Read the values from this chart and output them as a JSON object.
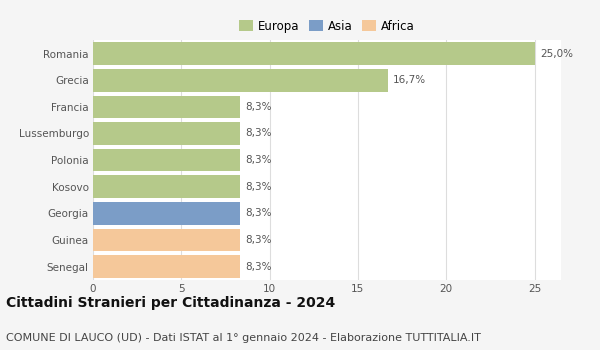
{
  "categories": [
    "Senegal",
    "Guinea",
    "Georgia",
    "Kosovo",
    "Polonia",
    "Lussemburgo",
    "Francia",
    "Grecia",
    "Romania"
  ],
  "values": [
    8.3,
    8.3,
    8.3,
    8.3,
    8.3,
    8.3,
    8.3,
    16.7,
    25.0
  ],
  "bar_colors": [
    "#f5c89a",
    "#f5c89a",
    "#7b9dc7",
    "#b5c98a",
    "#b5c98a",
    "#b5c98a",
    "#b5c98a",
    "#b5c98a",
    "#b5c98a"
  ],
  "labels": [
    "8,3%",
    "8,3%",
    "8,3%",
    "8,3%",
    "8,3%",
    "8,3%",
    "8,3%",
    "16,7%",
    "25,0%"
  ],
  "xlim": [
    0,
    25
  ],
  "xticks": [
    0,
    5,
    10,
    15,
    20,
    25
  ],
  "legend_labels": [
    "Europa",
    "Asia",
    "Africa"
  ],
  "legend_colors": [
    "#b5c98a",
    "#7b9dc7",
    "#f5c89a"
  ],
  "title": "Cittadini Stranieri per Cittadinanza - 2024",
  "subtitle": "COMUNE DI LAUCO (UD) - Dati ISTAT al 1° gennaio 2024 - Elaborazione TUTTITALIA.IT",
  "bg_color": "#f5f5f5",
  "plot_bg_color": "#ffffff",
  "grid_color": "#dddddd",
  "bar_height": 0.85,
  "title_fontsize": 10,
  "subtitle_fontsize": 8,
  "label_fontsize": 7.5,
  "tick_fontsize": 7.5,
  "legend_fontsize": 8.5
}
